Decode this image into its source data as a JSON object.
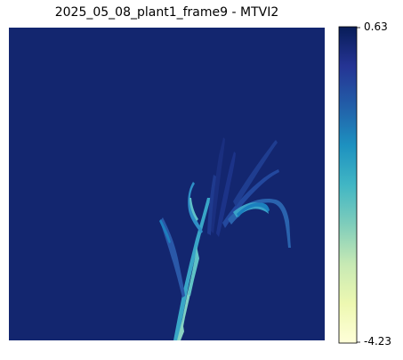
{
  "chart_data": {
    "type": "heatmap",
    "title": "2025_05_08_plant1_frame9 - MTVI2",
    "xlabel": "",
    "ylabel": "",
    "grid": false,
    "background_value": 0.4,
    "colormap": {
      "name": "YlGnBu",
      "stops": [
        "#ffffd9",
        "#edf8b1",
        "#c7e9b4",
        "#7fcdbb",
        "#41b6c4",
        "#1d91c0",
        "#225ea8",
        "#253494",
        "#081d58"
      ]
    },
    "colorbar": {
      "min": -4.23,
      "max": 0.63,
      "tick_labels": [
        "0.63",
        "-4.23"
      ]
    }
  }
}
